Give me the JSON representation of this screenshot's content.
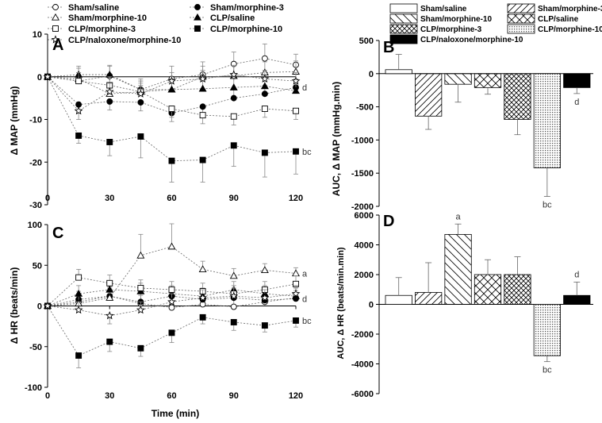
{
  "chart_data": [
    {
      "panel": "A",
      "type": "line",
      "xlabel": "",
      "ylabel": "Δ MAP (mmHg)",
      "xlim": [
        0,
        120
      ],
      "ylim": [
        -30,
        10
      ],
      "xticks": [
        0,
        30,
        60,
        90,
        120
      ],
      "yticks": [
        10,
        0,
        -10,
        -20,
        -30
      ],
      "x": [
        0,
        15,
        30,
        45,
        60,
        75,
        90,
        105,
        120
      ],
      "series": [
        {
          "name": "Sham/saline",
          "marker": "circle-open",
          "values": [
            0,
            -1,
            0.2,
            -3,
            -0.5,
            0.5,
            3,
            4.3,
            2.8
          ],
          "err": [
            0,
            2,
            2.5,
            2.5,
            3,
            3,
            2.8,
            3.4,
            2.5
          ]
        },
        {
          "name": "Sham/morphine-3",
          "marker": "circle-filled",
          "values": [
            0,
            -6.5,
            -5.8,
            -6,
            -8.5,
            -7,
            -5,
            -4,
            -2.5
          ],
          "err": [
            0,
            2,
            2,
            2,
            2,
            2,
            2,
            2,
            2
          ]
        },
        {
          "name": "Sham/morphine-10",
          "marker": "triangle-open",
          "values": [
            0,
            -0.5,
            -4,
            -3.5,
            -3,
            0,
            0.2,
            1,
            1.2
          ],
          "err": [
            0,
            2.5,
            2.5,
            2.5,
            2.5,
            2.5,
            2.5,
            2.5,
            2.5
          ]
        },
        {
          "name": "CLP/saline",
          "marker": "triangle-filled",
          "values": [
            0,
            0.5,
            0.5,
            -3,
            -3,
            -2.8,
            -2.5,
            -2.2,
            -3.3
          ],
          "err": [
            0,
            2,
            2,
            2,
            2,
            2,
            2,
            2,
            2
          ]
        },
        {
          "name": "CLP/morphine-3",
          "marker": "square-open",
          "values": [
            0,
            -1,
            -2,
            -3.5,
            -7.5,
            -9,
            -9.3,
            -7.5,
            -8
          ],
          "err": [
            0,
            2,
            2,
            2,
            2,
            2,
            2,
            2,
            2
          ]
        },
        {
          "name": "CLP/morphine-10",
          "marker": "square-filled",
          "values": [
            0,
            -13.8,
            -15.3,
            -14,
            -19.7,
            -19.5,
            -16.1,
            -17.8,
            -17.5
          ],
          "err": [
            0,
            1.8,
            3.2,
            5,
            5,
            5.2,
            4.9,
            5.7,
            5.3
          ]
        },
        {
          "name": "CLP/naloxone/morphine-10",
          "marker": "star-open",
          "values": [
            0,
            -8,
            -3.5,
            -4,
            -1,
            -0.5,
            0.5,
            -0.5,
            -1
          ],
          "err": [
            0,
            2,
            2,
            2,
            2,
            2,
            2,
            2,
            2
          ]
        }
      ],
      "annotations": [
        {
          "text": "d",
          "series": "Sham/morphine-3"
        },
        {
          "text": "bc",
          "series": "CLP/morphine-10"
        }
      ]
    },
    {
      "panel": "B",
      "type": "bar",
      "ylabel": "AUC, Δ MAP (mmHg.min)",
      "ylim": [
        -2000,
        500
      ],
      "yticks": [
        500,
        0,
        -500,
        -1000,
        -1500,
        -2000
      ],
      "categories": [
        "Sham/saline",
        "Sham/morphine-3",
        "Sham/morphine-10",
        "CLP/saline",
        "CLP/morphine-3",
        "CLP/morphine-10",
        "CLP/naloxone/morphine-10"
      ],
      "values": [
        60,
        -640,
        -160,
        -210,
        -690,
        -1420,
        -210
      ],
      "err": [
        230,
        200,
        270,
        100,
        230,
        430,
        90
      ],
      "labels": [
        "",
        "",
        "",
        "",
        "",
        "bc",
        "d"
      ]
    },
    {
      "panel": "C",
      "type": "line",
      "xlabel": "Time (min)",
      "ylabel": "Δ HR (beats/min)",
      "xlim": [
        0,
        120
      ],
      "ylim": [
        -100,
        100
      ],
      "xticks": [
        0,
        30,
        60,
        90,
        120
      ],
      "yticks": [
        100,
        50,
        0,
        -50,
        -100
      ],
      "x": [
        0,
        15,
        30,
        45,
        60,
        75,
        90,
        105,
        120
      ],
      "series": [
        {
          "name": "Sham/saline",
          "marker": "circle-open",
          "values": [
            0,
            5,
            12,
            3,
            -2,
            2,
            -1,
            5,
            10
          ],
          "err": [
            0,
            10,
            12,
            10,
            12,
            12,
            12,
            12,
            12
          ]
        },
        {
          "name": "Sham/morphine-3",
          "marker": "circle-filled",
          "values": [
            0,
            8,
            12,
            5,
            12,
            8,
            10,
            7,
            9
          ],
          "err": [
            0,
            10,
            10,
            10,
            10,
            10,
            10,
            10,
            10
          ]
        },
        {
          "name": "Sham/morphine-10",
          "marker": "triangle-open",
          "values": [
            0,
            3,
            10,
            62,
            73,
            45,
            37,
            44,
            40
          ],
          "err": [
            0,
            10,
            12,
            26,
            28,
            10,
            9,
            8,
            7
          ]
        },
        {
          "name": "CLP/saline",
          "marker": "triangle-filled",
          "values": [
            0,
            15,
            20,
            18,
            15,
            12,
            20,
            15,
            12
          ],
          "err": [
            0,
            10,
            10,
            10,
            10,
            10,
            10,
            10,
            10
          ]
        },
        {
          "name": "CLP/morphine-3",
          "marker": "square-open",
          "values": [
            0,
            35,
            28,
            22,
            20,
            18,
            15,
            20,
            27
          ],
          "err": [
            0,
            10,
            10,
            10,
            10,
            10,
            10,
            10,
            10
          ]
        },
        {
          "name": "CLP/morphine-10",
          "marker": "square-filled",
          "values": [
            0,
            -61,
            -44,
            -52,
            -33,
            -14,
            -20,
            -24,
            -18
          ],
          "err": [
            0,
            15,
            12,
            10,
            12,
            8,
            10,
            8,
            8
          ]
        },
        {
          "name": "CLP/naloxone/morphine-10",
          "marker": "star-open",
          "values": [
            0,
            -5,
            -12,
            -5,
            5,
            10,
            12,
            10,
            15
          ],
          "err": [
            0,
            10,
            10,
            10,
            10,
            10,
            10,
            10,
            10
          ]
        }
      ],
      "annotations": [
        {
          "text": "a",
          "series": "Sham/morphine-10"
        },
        {
          "text": "d",
          "series": "Sham/morphine-3"
        },
        {
          "text": "bc",
          "series": "CLP/morphine-10"
        }
      ]
    },
    {
      "panel": "D",
      "type": "bar",
      "ylabel": "AUC, Δ HR (beats/min.min)",
      "ylim": [
        -6000,
        6000
      ],
      "yticks": [
        6000,
        4000,
        2000,
        0,
        -2000,
        -4000,
        -6000
      ],
      "categories": [
        "Sham/saline",
        "Sham/morphine-3",
        "Sham/morphine-10",
        "CLP/saline",
        "CLP/morphine-3",
        "CLP/morphine-10",
        "CLP/naloxone/morphine-10"
      ],
      "values": [
        600,
        800,
        4700,
        2000,
        2000,
        -3450,
        600
      ],
      "err": [
        1200,
        2000,
        700,
        1000,
        1200,
        400,
        900
      ],
      "labels": [
        "",
        "",
        "a",
        "",
        "",
        "bc",
        "d"
      ]
    }
  ],
  "legend_line": {
    "items": [
      {
        "name": "Sham/saline",
        "marker": "circle-open"
      },
      {
        "name": "Sham/morphine-3",
        "marker": "circle-filled"
      },
      {
        "name": "Sham/morphine-10",
        "marker": "triangle-open"
      },
      {
        "name": "CLP/saline",
        "marker": "triangle-filled"
      },
      {
        "name": "CLP/morphine-3",
        "marker": "square-open"
      },
      {
        "name": "CLP/morphine-10",
        "marker": "square-filled"
      },
      {
        "name": "CLP/naloxone/morphine-10",
        "marker": "star-open"
      }
    ]
  },
  "legend_bar": {
    "items": [
      {
        "name": "Sham/saline",
        "pattern": "none"
      },
      {
        "name": "Sham/morphine-3",
        "pattern": "diag-right"
      },
      {
        "name": "Sham/morphine-10",
        "pattern": "diag-left"
      },
      {
        "name": "CLP/saline",
        "pattern": "cross"
      },
      {
        "name": "CLP/morphine-3",
        "pattern": "cross-dense"
      },
      {
        "name": "CLP/morphine-10",
        "pattern": "dots"
      },
      {
        "name": "CLP/naloxone/morphine-10",
        "pattern": "solid"
      }
    ]
  }
}
